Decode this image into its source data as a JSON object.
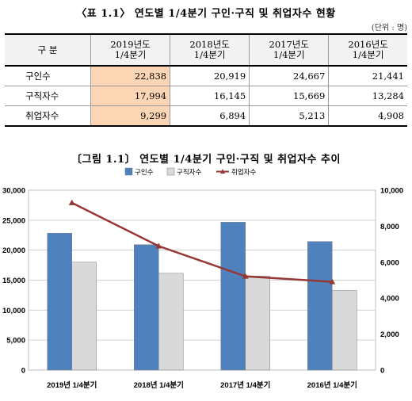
{
  "table": {
    "title": "〈표 1.1〉  연도별 1/4분기 구인·구직 및 취업자수 현황",
    "unit": "(단위 : 명)",
    "header": [
      "구 분",
      "2019년도\n1/4분기",
      "2018년도\n1/4분기",
      "2017년도\n1/4분기",
      "2016년도\n1/4분기"
    ],
    "rows": [
      {
        "label": "구인수",
        "values": [
          "22,838",
          "20,919",
          "24,667",
          "21,441"
        ]
      },
      {
        "label": "구직자수",
        "values": [
          "17,994",
          "16,145",
          "15,669",
          "13,284"
        ]
      },
      {
        "label": "취업자수",
        "values": [
          "9,299",
          "6,894",
          "5,213",
          "4,908"
        ]
      }
    ]
  },
  "figure": {
    "title": "〔그림 1.1〕  연도별  1/4분기 구인·구직 및 취업자수 추이"
  },
  "chart_data": {
    "type": "bar",
    "categories": [
      "2019년 1/4분기",
      "2018년 1/4분기",
      "2017년 1/4분기",
      "2016년 1/4분기"
    ],
    "series": [
      {
        "name": "구인수",
        "kind": "bar",
        "axis": "left",
        "color": "#4f81bd",
        "values": [
          22838,
          20919,
          24667,
          21441
        ]
      },
      {
        "name": "구직자수",
        "kind": "bar",
        "axis": "left",
        "color": "#d9d9d9",
        "values": [
          17994,
          16145,
          15669,
          13284
        ]
      },
      {
        "name": "취업자수",
        "kind": "line",
        "axis": "right",
        "color": "#953735",
        "values": [
          9299,
          6894,
          5213,
          4908
        ]
      }
    ],
    "ylim_left": [
      0,
      30000
    ],
    "yticks_left": [
      "0",
      "5,000",
      "10,000",
      "15,000",
      "20,000",
      "25,000",
      "30,000"
    ],
    "ylim_right": [
      0,
      10000
    ],
    "yticks_right": [
      "0",
      "2,000",
      "4,000",
      "6,000",
      "8,000",
      "10,000"
    ],
    "grid": true,
    "legend_position": "top"
  }
}
